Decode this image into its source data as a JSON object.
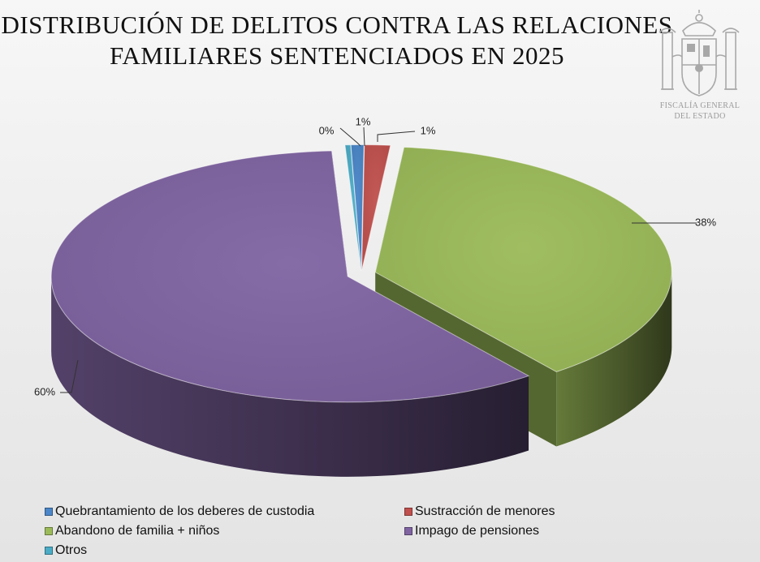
{
  "title_line1": "DISTRIBUCIÓN DE DELITOS CONTRA LAS RELACIONES",
  "title_line2": "FAMILIARES SENTENCIADOS EN 2025",
  "emblem": {
    "line1": "FISCALÍA GENERAL",
    "line2": "DEL ESTADO",
    "icon": "spanish-coat-of-arms"
  },
  "chart_data": {
    "type": "pie",
    "style": "3d-exploded",
    "title": "DISTRIBUCIÓN DE DELITOS CONTRA LAS RELACIONES FAMILIARES SENTENCIADOS EN 2025",
    "legend_position": "bottom",
    "slices": [
      {
        "name": "Quebrantamiento de los deberes de custodia",
        "value": 0.7,
        "label": "1%",
        "color": "#4a86c8"
      },
      {
        "name": "Sustracción de menores",
        "value": 1.4,
        "label": "1%",
        "color": "#c0504d"
      },
      {
        "name": "Abandono de familia + niños",
        "value": 38,
        "label": "38%",
        "color": "#9bbb59"
      },
      {
        "name": "Impago de pensiones",
        "value": 59.6,
        "label": "60%",
        "color": "#8064a2"
      },
      {
        "name": "Otros",
        "value": 0.3,
        "label": "0%",
        "color": "#4bacc6"
      }
    ]
  }
}
